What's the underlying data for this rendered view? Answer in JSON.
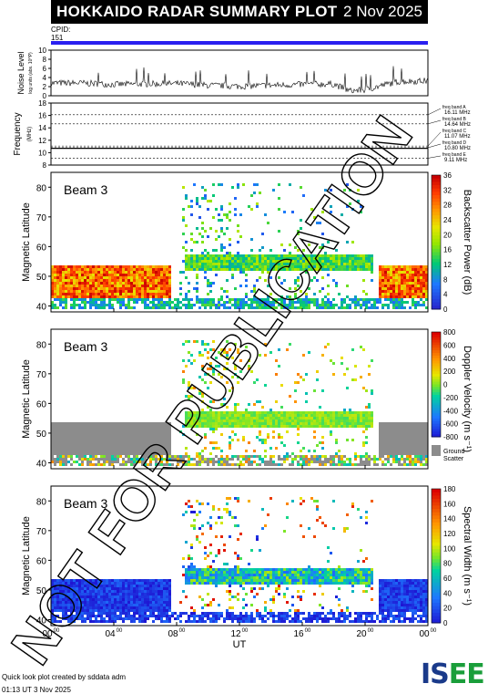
{
  "header": {
    "title": "HOKKAIDO RADAR SUMMARY PLOT",
    "date": "2 Nov 2025"
  },
  "cpid": {
    "label": "CPID:",
    "value": "151"
  },
  "noise": {
    "ylabel": "Noise Level",
    "ylabel_sub": "log units (abs. 10^P)",
    "ticks": [
      0,
      2,
      4,
      6,
      8,
      10
    ],
    "ylim": [
      0,
      10
    ]
  },
  "frequency": {
    "ylabel": "Frequency",
    "ylabel_unit": "(MHz)",
    "ticks": [
      8,
      10,
      12,
      14,
      16,
      18
    ],
    "ylim": [
      8,
      18
    ],
    "bands": [
      {
        "name": "freq band A",
        "mhz": "16.11 MHz",
        "value": 16.11
      },
      {
        "name": "freq band B",
        "mhz": "14.64 MHz",
        "value": 14.64
      },
      {
        "name": "freq band C",
        "mhz": "11.07 MHz",
        "value": 11.07
      },
      {
        "name": "freq band D",
        "mhz": "10.80 MHz",
        "value": 10.8
      },
      {
        "name": "freq band E",
        "mhz": "9.11 MHz",
        "value": 9.11
      }
    ]
  },
  "panels": [
    {
      "id": "power",
      "beam": "Beam  3",
      "ylabel": "Magnetic Latitude",
      "cbar_label": "Backscatter Power (dB)",
      "cbar_ticks": [
        "36",
        "32",
        "28",
        "24",
        "20",
        "16",
        "12",
        "8",
        "4",
        "0"
      ],
      "yticks": [
        40,
        50,
        60,
        70,
        80
      ],
      "ylim": [
        38,
        85
      ]
    },
    {
      "id": "velocity",
      "beam": "Beam  3",
      "ylabel": "Magnetic Latitude",
      "cbar_label": "Doppler Velocity (m s⁻¹)",
      "cbar_ticks": [
        "800",
        "600",
        "400",
        "200",
        "0",
        "-200",
        "-400",
        "-600",
        "-800"
      ],
      "ground_label": "Ground",
      "ground_label2": "Scatter",
      "yticks": [
        40,
        50,
        60,
        70,
        80
      ],
      "ylim": [
        38,
        85
      ]
    },
    {
      "id": "width",
      "beam": "Beam  3",
      "ylabel": "Magnetic Latitude",
      "cbar_label": "Spectral Width (m s⁻¹)",
      "cbar_ticks": [
        "180",
        "160",
        "140",
        "120",
        "100",
        "80",
        "60",
        "40",
        "20",
        "0"
      ],
      "yticks": [
        40,
        50,
        60,
        70,
        80
      ],
      "ylim": [
        38,
        85
      ]
    }
  ],
  "xaxis": {
    "label": "UT",
    "ticks": [
      "00",
      "04",
      "08",
      "12",
      "16",
      "20",
      "00"
    ],
    "tick_sup": "00",
    "xlim_hours": [
      0,
      24
    ]
  },
  "watermark": "NOT FOR PUBLICATION",
  "footer": {
    "line1": "Quick look plot created by sddata adm",
    "line2": "01:13 UT  3 Nov 2025"
  },
  "logo": {
    "text": "ISEE",
    "colors": [
      "#1a3a8a",
      "#1a3a8a",
      "#1a9e3a",
      "#1a9e3a"
    ]
  },
  "colors": {
    "cpid_bar": "#2a1ff0",
    "ground_scatter": "#8c8c8c",
    "noise_trace": "#000000"
  },
  "chart_data": [
    {
      "type": "line",
      "title": "Noise Level",
      "xlabel": "UT",
      "ylim": [
        0,
        10
      ],
      "x_hours": [
        0,
        2,
        4,
        6,
        8,
        10,
        12,
        14,
        16,
        18,
        19,
        20,
        22,
        24
      ],
      "values": [
        2.5,
        2.5,
        2.2,
        2.3,
        2.4,
        2.0,
        1.8,
        2.0,
        2.2,
        2.3,
        0.8,
        1.0,
        2.8,
        3.0
      ]
    },
    {
      "type": "line",
      "title": "Frequency",
      "ylim": [
        8,
        18
      ],
      "x_hours": [
        0,
        24
      ],
      "values": [
        10.7,
        10.7
      ]
    },
    {
      "type": "heatmap",
      "title": "Backscatter Power",
      "x_hours": [
        0,
        24
      ],
      "lat_range": [
        38,
        85
      ],
      "value_range": [
        0,
        36
      ]
    },
    {
      "type": "heatmap",
      "title": "Doppler Velocity",
      "x_hours": [
        0,
        24
      ],
      "lat_range": [
        38,
        85
      ],
      "value_range": [
        -800,
        800
      ]
    },
    {
      "type": "heatmap",
      "title": "Spectral Width",
      "x_hours": [
        0,
        24
      ],
      "lat_range": [
        38,
        85
      ],
      "value_range": [
        0,
        180
      ]
    }
  ]
}
